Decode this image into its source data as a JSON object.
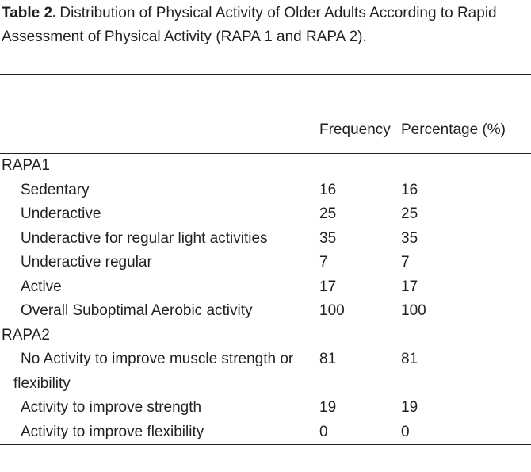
{
  "caption": {
    "label": "Table 2.",
    "text": "Distribution of Physical Activity of Older Adults According to Rapid Assessment of Physical Activity (RAPA 1 and RAPA 2)."
  },
  "table": {
    "headers": [
      "Frequency",
      "Percentage (%)"
    ],
    "sections": [
      {
        "title": "RAPA1",
        "rows": [
          [
            "Sedentary",
            16,
            16
          ],
          [
            "Underactive",
            25,
            25
          ],
          [
            "Underactive for regular light activities",
            35,
            35
          ],
          [
            "Underactive regular",
            7,
            7
          ],
          [
            "Active",
            17,
            17
          ],
          [
            "Overall Suboptimal Aerobic activity",
            100,
            100
          ]
        ]
      },
      {
        "title": "RAPA2",
        "rows": [
          [
            "No Activity to improve muscle strength or flexibility",
            81,
            81
          ],
          [
            "Activity to improve strength",
            19,
            19
          ],
          [
            "Activity to improve flexibility",
            0,
            0
          ]
        ]
      }
    ]
  }
}
